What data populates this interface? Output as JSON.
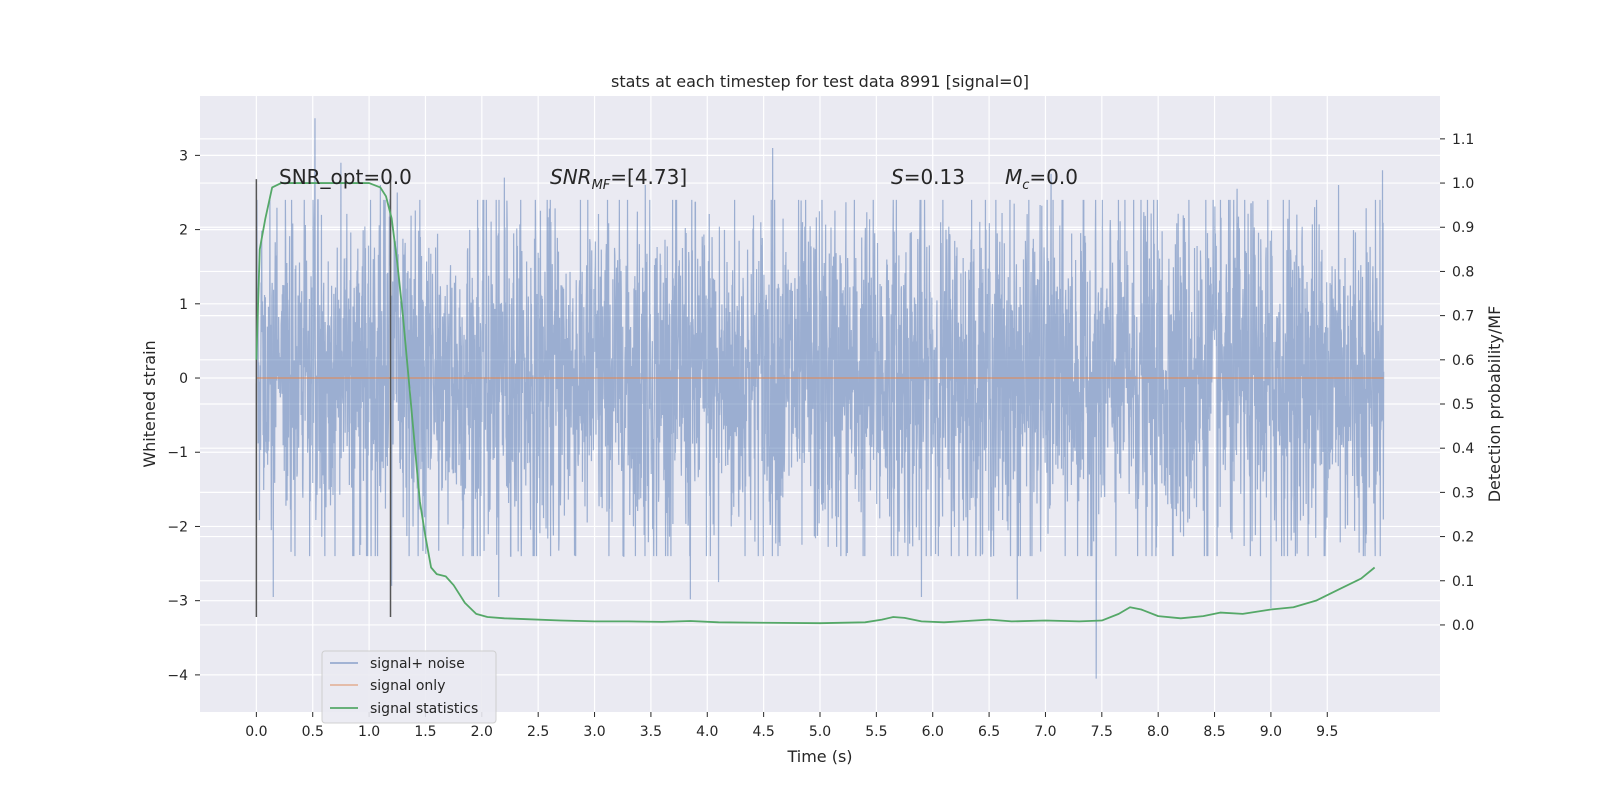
{
  "chart_data": {
    "type": "line",
    "title": "stats at each timestep for test data 8991 [signal=0]",
    "xlabel": "Time (s)",
    "ylabel": "Whitened strain",
    "y2label": "Detection probability/MF",
    "xlim": [
      -0.5,
      10.5
    ],
    "ylim": [
      -4.5,
      3.8
    ],
    "y2lim": [
      -0.197,
      1.197
    ],
    "x_ticks": [
      0.0,
      0.5,
      1.0,
      1.5,
      2.0,
      2.5,
      3.0,
      3.5,
      4.0,
      4.5,
      5.0,
      5.5,
      6.0,
      6.5,
      7.0,
      7.5,
      8.0,
      8.5,
      9.0,
      9.5
    ],
    "x_tick_labels": [
      "0.0",
      "0.5",
      "1.0",
      "1.5",
      "2.0",
      "2.5",
      "3.0",
      "3.5",
      "4.0",
      "4.5",
      "5.0",
      "5.5",
      "6.0",
      "6.5",
      "7.0",
      "7.5",
      "8.0",
      "8.5",
      "9.0",
      "9.5"
    ],
    "y_ticks": [
      3,
      2,
      1,
      0,
      -1,
      -2,
      -3,
      -4
    ],
    "y_tick_labels": [
      "3",
      "2",
      "1",
      "0",
      "−1",
      "−2",
      "−3",
      "−4"
    ],
    "y2_ticks": [
      1.1,
      1.0,
      0.9,
      0.8,
      0.7,
      0.6,
      0.5,
      0.4,
      0.3,
      0.2,
      0.1,
      0.0
    ],
    "y2_tick_labels": [
      "1.1",
      "1.0",
      "0.9",
      "0.8",
      "0.7",
      "0.6",
      "0.5",
      "0.4",
      "0.3",
      "0.2",
      "0.1",
      "0.0"
    ],
    "grid": true,
    "legend_position": "lower-left",
    "series": [
      {
        "name": "signal+ noise",
        "color": "#4c72b0",
        "axis": "left",
        "kind": "noise",
        "t_range": [
          0.0,
          10.0
        ],
        "typical_range": [
          -1.5,
          1.5
        ],
        "spikes": [
          [
            0.52,
            3.5
          ],
          [
            7.45,
            -4.05
          ],
          [
            4.58,
            3.1
          ],
          [
            9.99,
            2.8
          ],
          [
            0.75,
            2.9
          ],
          [
            1.1,
            2.6
          ],
          [
            1.25,
            2.5
          ],
          [
            2.2,
            2.7
          ],
          [
            3.45,
            2.6
          ],
          [
            5.9,
            2.55
          ],
          [
            7.05,
            2.75
          ],
          [
            8.7,
            2.55
          ],
          [
            9.6,
            2.6
          ],
          [
            0.15,
            -2.95
          ],
          [
            3.85,
            -2.98
          ],
          [
            2.15,
            -2.95
          ],
          [
            5.9,
            -2.95
          ],
          [
            6.75,
            -2.98
          ],
          [
            9.0,
            -3.1
          ],
          [
            1.2,
            -2.8
          ],
          [
            4.1,
            -2.75
          ]
        ]
      },
      {
        "name": "signal only",
        "color": "#dd8452",
        "axis": "left",
        "x": [
          0.0,
          10.0
        ],
        "y": [
          0.0,
          0.0
        ]
      },
      {
        "name": "signal statistics",
        "color": "#55a868",
        "axis": "right",
        "x": [
          0.0,
          0.03,
          0.08,
          0.14,
          0.22,
          0.35,
          0.5,
          0.7,
          0.9,
          1.0,
          1.1,
          1.15,
          1.2,
          1.25,
          1.3,
          1.35,
          1.4,
          1.45,
          1.5,
          1.55,
          1.6,
          1.68,
          1.75,
          1.85,
          1.95,
          2.05,
          2.2,
          2.4,
          2.7,
          3.0,
          3.3,
          3.6,
          3.85,
          4.1,
          4.5,
          5.0,
          5.4,
          5.55,
          5.65,
          5.75,
          5.9,
          6.1,
          6.3,
          6.5,
          6.7,
          7.0,
          7.3,
          7.5,
          7.65,
          7.75,
          7.85,
          8.0,
          8.2,
          8.4,
          8.55,
          8.75,
          9.0,
          9.2,
          9.4,
          9.6,
          9.8,
          9.92
        ],
        "y": [
          0.6,
          0.85,
          0.92,
          0.99,
          1.0,
          1.0,
          1.0,
          1.0,
          1.0,
          1.0,
          0.99,
          0.97,
          0.92,
          0.82,
          0.7,
          0.56,
          0.42,
          0.28,
          0.2,
          0.13,
          0.115,
          0.11,
          0.09,
          0.05,
          0.025,
          0.018,
          0.015,
          0.013,
          0.01,
          0.008,
          0.008,
          0.007,
          0.009,
          0.006,
          0.005,
          0.004,
          0.006,
          0.012,
          0.018,
          0.016,
          0.008,
          0.006,
          0.009,
          0.012,
          0.008,
          0.01,
          0.008,
          0.01,
          0.025,
          0.04,
          0.035,
          0.02,
          0.015,
          0.02,
          0.028,
          0.025,
          0.035,
          0.04,
          0.055,
          0.08,
          0.105,
          0.13
        ]
      }
    ],
    "vlines": [
      {
        "x": 0.0,
        "y_from": -3.22,
        "y_to": 2.68,
        "color": "#555555"
      },
      {
        "x": 1.19,
        "y_from": -3.22,
        "y_to": 2.68,
        "color": "#555555"
      }
    ],
    "annotations": {
      "snr_opt": "SNR_opt=0.0",
      "snr_mf_main": "SNR",
      "snr_mf_sub": "MF",
      "snr_mf_value": "=[4.73]",
      "s_main": "S",
      "s_value": "=0.13",
      "mc_main": "M",
      "mc_sub": "c",
      "mc_value": "=0.0"
    }
  }
}
